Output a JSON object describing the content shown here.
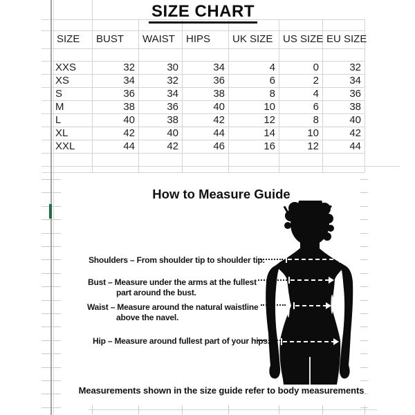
{
  "title": "SIZE CHART",
  "table": {
    "headers": [
      "SIZE",
      "BUST",
      "WAIST",
      "HIPS",
      "UK SIZE",
      "US SIZE",
      "EU SIZE"
    ],
    "rows": [
      [
        "XXS",
        32,
        30,
        34,
        4,
        0,
        32
      ],
      [
        "XS",
        34,
        32,
        36,
        6,
        2,
        34
      ],
      [
        "S",
        36,
        34,
        38,
        8,
        4,
        36
      ],
      [
        "M",
        38,
        36,
        40,
        10,
        6,
        38
      ],
      [
        "L",
        40,
        38,
        42,
        12,
        8,
        40
      ],
      [
        "XL",
        42,
        40,
        44,
        14,
        10,
        42
      ],
      [
        "XXL",
        44,
        42,
        46,
        16,
        12,
        44
      ]
    ]
  },
  "guide": {
    "title": "How to Measure Guide",
    "labels": [
      {
        "name": "shoulders",
        "lines": [
          "Shoulders – From shoulder tip to shoulder tip."
        ]
      },
      {
        "name": "bust",
        "lines": [
          "Bust – Measure under the arms at the fullest",
          "part around the bust."
        ]
      },
      {
        "name": "waist",
        "lines": [
          "Waist – Measure around the natural waistline",
          "above the navel."
        ]
      },
      {
        "name": "hip",
        "lines": [
          "Hip – Measure around fullest part of your hips."
        ]
      }
    ],
    "note": "Measurements shown in the size guide refer to body measurements",
    "figure": "female-body-silhouette",
    "measure_lines": [
      "shoulders",
      "bust",
      "waist",
      "hips"
    ]
  },
  "colors": {
    "accent_green": "#1e6f41",
    "gridline": "#d3d3d3",
    "text": "#161616",
    "silhouette": "#0c0c0c"
  }
}
